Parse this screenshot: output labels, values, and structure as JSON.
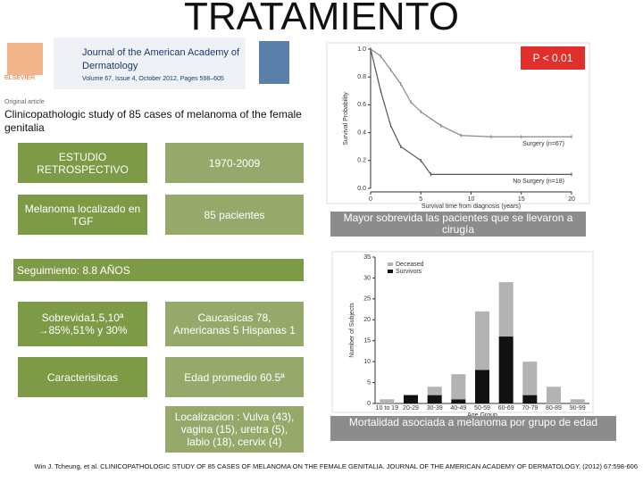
{
  "title": "TRATAMIENTO",
  "article": {
    "publisher": "ELSEVIER",
    "journal": "Journal of the American Academy of Dermatology",
    "volume": "Volume 67, Issue 4, October 2012, Pages 598–605",
    "type": "Original article",
    "title": "Clinicopathologic study of 85 cases of melanoma of the female genitalia"
  },
  "table": {
    "left": [
      "ESTUDIO RETROSPECTIVO",
      "Melanoma localizado en TGF",
      "Sobrevida1,5,10ª →85%,51% y 30%",
      "Caracterisitcas"
    ],
    "right": [
      "1970-2009",
      "85 pacientes",
      "Caucasicas 78, Americanas 5 Hispanas 1",
      "Edad promedio 60.5ª",
      "Localizacion : Vulva (43), vagina (15), uretra (5), labio (18), cervix (4)"
    ],
    "followup": "Seguimiento: 8.8 AÑOS"
  },
  "captions": [
    "Mayor sobrevida las pacientes que  se llevaron a cirugía",
    "Mortalidad asociada a melanoma por grupo de edad"
  ],
  "citation": "Win J. Tcheung, et al. CLINICOPATHOLOGIC STUDY OF 85 CASES OF MELANOMA ON THE FEMALE GENITALIA. JOURNAL OF THE AMERICAN ACADEMY OF DERMATOLOGY. (2012) 67:598-606",
  "chart_data": [
    {
      "type": "line",
      "x_label": "Survival time from diagnosis (years)",
      "y_label": "Survival Probability",
      "annotation": "P < 0.01",
      "xlim": [
        0,
        20
      ],
      "xticks": [
        0,
        5,
        10,
        15,
        20
      ],
      "ylim": [
        0,
        1
      ],
      "yticks": [
        {
          "value": 0,
          "label": "0.0"
        },
        {
          "value": 0.2,
          "label": "0.2"
        },
        {
          "value": 0.4,
          "label": "0.4"
        },
        {
          "value": 0.6,
          "label": "0.6"
        },
        {
          "value": 0.8,
          "label": "0.8"
        },
        {
          "value": 1,
          "label": "1.0"
        }
      ],
      "series": [
        {
          "name": "Surgery (n=67)",
          "color": "#888888",
          "x": [
            0,
            1,
            2,
            3,
            4,
            5,
            7,
            9,
            12,
            15,
            20
          ],
          "values": [
            1,
            0.95,
            0.85,
            0.75,
            0.62,
            0.55,
            0.45,
            0.38,
            0.37,
            0.37,
            0.37
          ]
        },
        {
          "name": "No Surgery (n=18)",
          "color": "#555555",
          "x": [
            0,
            1,
            2,
            3,
            5,
            6,
            20
          ],
          "values": [
            1,
            0.7,
            0.45,
            0.3,
            0.2,
            0.1,
            0.1
          ]
        }
      ]
    },
    {
      "type": "bar",
      "x_label": "Age Group",
      "y_label": "Number of Subjects",
      "categories": [
        "10 to 19",
        "20-29",
        "30-39",
        "40-49",
        "50-59",
        "60-69",
        "70-79",
        "80-89",
        "90-99"
      ],
      "ylim": [
        0,
        35
      ],
      "yticks": [
        0,
        5,
        10,
        15,
        20,
        25,
        30,
        35
      ],
      "series": [
        {
          "name": "Deceased",
          "color": "#b3b3b3",
          "values": [
            1,
            0,
            2,
            6,
            14,
            13,
            8,
            4,
            1
          ]
        },
        {
          "name": "Survivors",
          "color": "#111111",
          "values": [
            0,
            2,
            2,
            1,
            8,
            16,
            2,
            0,
            0
          ]
        }
      ]
    }
  ]
}
